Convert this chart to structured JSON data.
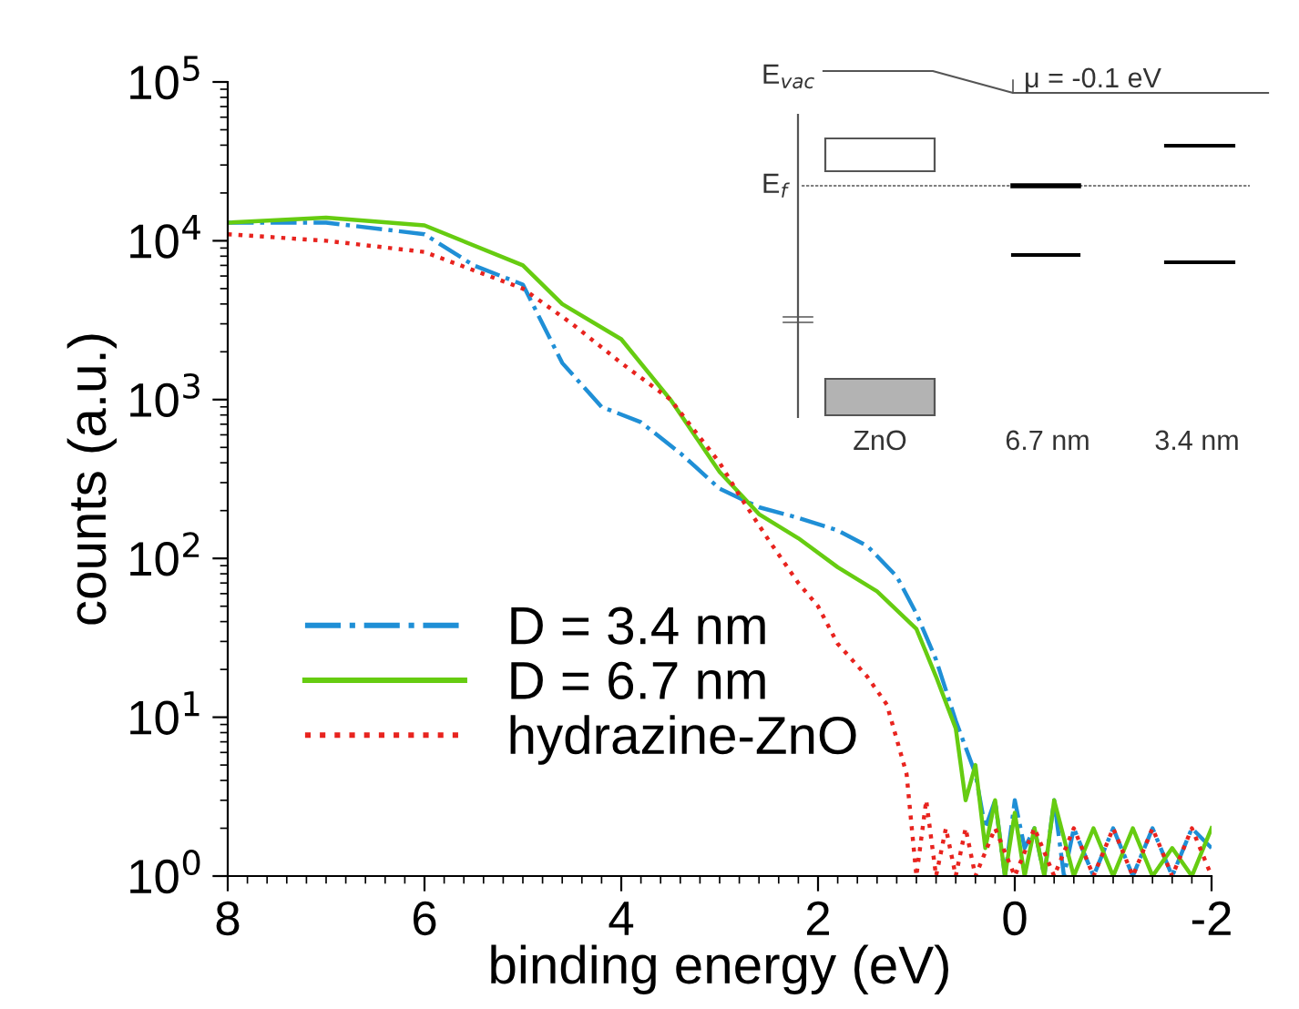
{
  "chart_data": {
    "type": "line",
    "xlabel": "binding energy (eV)",
    "ylabel": "counts (a.u.)",
    "log": "y",
    "xlim": [
      8,
      -2
    ],
    "xticks": [
      8,
      6,
      4,
      2,
      0,
      -2
    ],
    "ylim": [
      1,
      100000
    ],
    "yticks": [
      {
        "value": 1,
        "label": "10$^{0}$"
      },
      {
        "value": 10,
        "label": "10$^{1}$"
      },
      {
        "value": 100,
        "label": "10$^{2}$"
      },
      {
        "value": 1000,
        "label": "10$^{3}$"
      },
      {
        "value": 10000,
        "label": "10$^{4}$"
      },
      {
        "value": 100000,
        "label": "10$^{5}$"
      }
    ],
    "grid": false,
    "legend": "bottom left",
    "series": [
      {
        "name": "D = 3.4 nm",
        "color": "#1f8fd6",
        "line_style": "dashdot",
        "x": [
          8,
          7,
          6,
          5.5,
          5,
          4.6,
          4.2,
          3.8,
          3.4,
          3,
          2.6,
          2.2,
          1.8,
          1.5,
          1.2,
          1,
          0.8,
          0.6,
          0.4,
          0.3,
          0.2,
          0.1,
          0,
          -0.1,
          -0.2,
          -0.3,
          -0.4,
          -0.5,
          -0.6,
          -0.8,
          -1,
          -1.2,
          -1.4,
          -1.6,
          -1.8,
          -2
        ],
        "values": [
          13000,
          13000,
          11000,
          7000,
          5300,
          1700,
          900,
          720,
          460,
          275,
          210,
          180,
          150,
          120,
          77,
          45,
          23,
          9.5,
          4.4,
          2,
          3,
          1,
          3,
          1.5,
          2,
          1,
          3,
          1,
          2,
          1,
          2,
          1,
          2,
          1,
          2,
          1.5
        ]
      },
      {
        "name": "D = 6.7 nm",
        "color": "#66cc11",
        "line_style": "solid",
        "x": [
          8,
          7,
          6,
          5,
          4.6,
          4,
          3.5,
          3,
          2.6,
          2.2,
          1.8,
          1.4,
          1,
          0.8,
          0.6,
          0.5,
          0.4,
          0.3,
          0.2,
          0.1,
          0,
          -0.1,
          -0.2,
          -0.3,
          -0.4,
          -0.6,
          -0.8,
          -1,
          -1.2,
          -1.4,
          -1.6,
          -1.8,
          -2
        ],
        "values": [
          13000,
          14000,
          12500,
          7000,
          4000,
          2400,
          1000,
          350,
          190,
          134,
          88,
          62,
          36,
          18,
          8.5,
          3,
          5,
          1.5,
          3,
          1,
          2.5,
          1,
          2,
          1,
          3,
          1,
          2,
          1,
          2,
          1,
          1.5,
          1,
          2
        ]
      },
      {
        "name": "hydrazine-ZnO",
        "color": "#e8231e",
        "line_style": "dotted",
        "x": [
          8,
          7,
          6,
          5,
          4.5,
          4,
          3.5,
          3,
          2.8,
          2.5,
          2.2,
          2,
          1.8,
          1.5,
          1.3,
          1.1,
          1,
          0.9,
          0.8,
          0.7,
          0.6,
          0.5,
          0.4,
          0.2,
          0,
          -0.2,
          -0.4,
          -0.6,
          -0.8,
          -1,
          -1.2,
          -1.4,
          -1.6,
          -1.8,
          -2
        ],
        "values": [
          11000,
          10000,
          8500,
          5000,
          3000,
          1700,
          1000,
          400,
          250,
          130,
          70,
          50,
          29,
          18,
          12,
          4.4,
          1,
          3,
          1,
          2,
          1,
          2,
          1,
          2,
          1,
          2,
          1,
          2,
          1,
          2,
          1,
          2,
          1,
          2,
          1
        ]
      }
    ],
    "annotations": [
      "E$_{vac}$",
      "μ = -0.1 eV",
      "E$_{f}$",
      "ZnO",
      "6.7 nm",
      "3.4 nm"
    ]
  }
}
